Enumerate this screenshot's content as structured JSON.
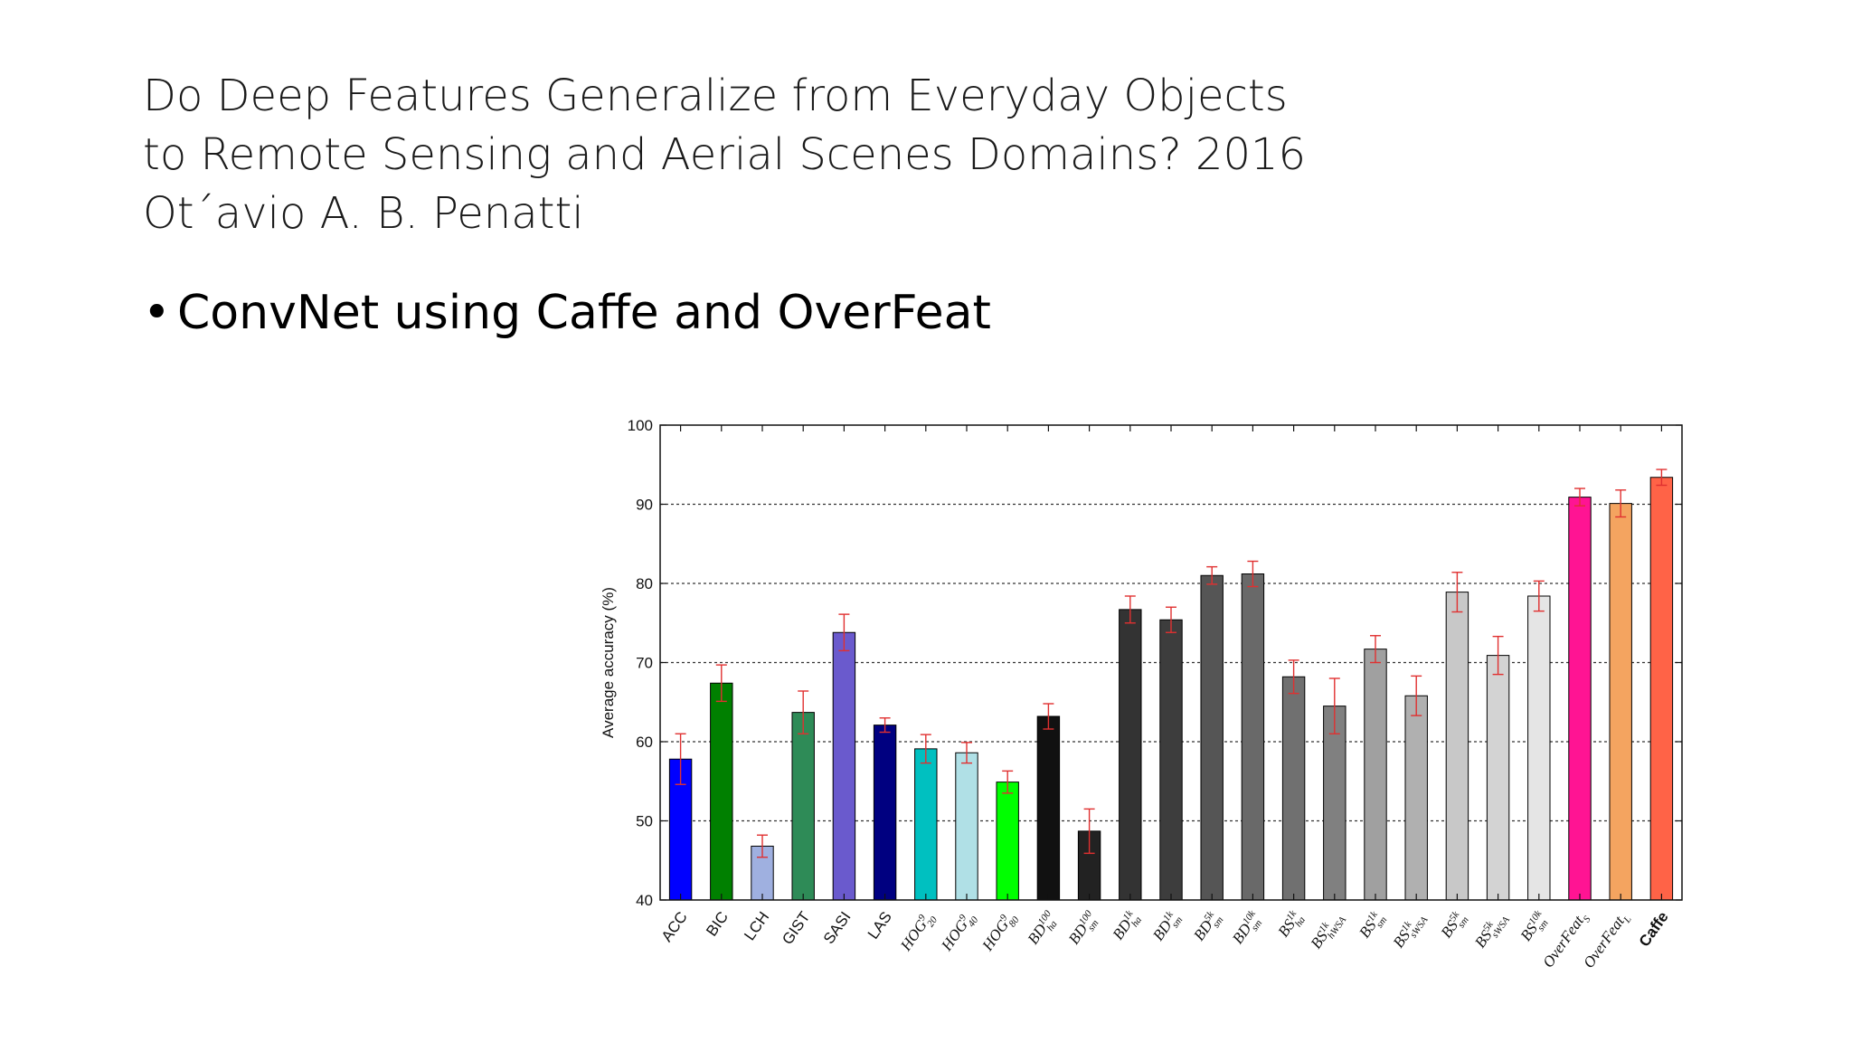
{
  "slide": {
    "title_lines": [
      "Do Deep Features Generalize from Everyday Objects",
      "to Remote Sensing and Aerial Scenes Domains? 2016",
      "Ot´avio A. B. Penatti"
    ],
    "bullet": "ConvNet using Caffe and OverFeat"
  },
  "chart_data": {
    "type": "bar",
    "title": "",
    "xlabel": "",
    "ylabel": "Average accuracy (%)",
    "ylim": [
      40,
      100
    ],
    "yticks": [
      40,
      50,
      60,
      70,
      80,
      90,
      100
    ],
    "grid": "horizontal dashed",
    "error_bar_color": "#e03030",
    "categories": [
      {
        "label": "ACC",
        "base": "ACC"
      },
      {
        "label": "BIC",
        "base": "BIC"
      },
      {
        "label": "LCH",
        "base": "LCH"
      },
      {
        "label": "GIST",
        "base": "GIST"
      },
      {
        "label": "SASI",
        "base": "SASI"
      },
      {
        "label": "LAS",
        "base": "LAS"
      },
      {
        "label": "HOG 9/20",
        "base": "HOG",
        "sup": "9",
        "sub": "20",
        "math": true
      },
      {
        "label": "HOG 9/40",
        "base": "HOG",
        "sup": "9",
        "sub": "40",
        "math": true
      },
      {
        "label": "HOG 9/80",
        "base": "HOG",
        "sup": "9",
        "sub": "80",
        "math": true
      },
      {
        "label": "BD 100/ha",
        "base": "BD",
        "sup": "100",
        "sub": "ha",
        "math": true
      },
      {
        "label": "BD 100/sm",
        "base": "BD",
        "sup": "100",
        "sub": "sm",
        "math": true
      },
      {
        "label": "BD 1k/ha",
        "base": "BD",
        "sup": "1k",
        "sub": "ha",
        "math": true
      },
      {
        "label": "BD 1k/sm",
        "base": "BD",
        "sup": "1k",
        "sub": "sm",
        "math": true
      },
      {
        "label": "BD 5k/sm",
        "base": "BD",
        "sup": "5k",
        "sub": "sm",
        "math": true
      },
      {
        "label": "BD 10k/sm",
        "base": "BD",
        "sup": "10k",
        "sub": "sm",
        "math": true
      },
      {
        "label": "BS 1k/ha",
        "base": "BS",
        "sup": "1k",
        "sub": "ha",
        "math": true
      },
      {
        "label": "BS 1k/hWSA",
        "base": "BS",
        "sup": "1k",
        "sub": "hWSA",
        "math": true
      },
      {
        "label": "BS 1k/sm",
        "base": "BS",
        "sup": "1k",
        "sub": "sm",
        "math": true
      },
      {
        "label": "BS 1k/sWSA",
        "base": "BS",
        "sup": "1k",
        "sub": "sWSA",
        "math": true
      },
      {
        "label": "BS 5k/sm",
        "base": "BS",
        "sup": "5k",
        "sub": "sm",
        "math": true
      },
      {
        "label": "BS 5k/sWSA",
        "base": "BS",
        "sup": "5k",
        "sub": "sWSA",
        "math": true
      },
      {
        "label": "BS 10k/sm",
        "base": "BS",
        "sup": "10k",
        "sub": "sm",
        "math": true
      },
      {
        "label": "OverFeat S",
        "base": "OverFeat",
        "sub": "S",
        "math": true
      },
      {
        "label": "OverFeat L",
        "base": "OverFeat",
        "sub": "L",
        "math": true
      },
      {
        "label": "Caffe",
        "base": "Caffe",
        "bold": true
      }
    ],
    "values": [
      57.8,
      67.4,
      46.8,
      63.7,
      73.8,
      62.1,
      59.1,
      58.6,
      54.9,
      63.2,
      48.7,
      76.7,
      75.4,
      81.0,
      81.2,
      68.2,
      64.5,
      71.7,
      65.8,
      78.9,
      70.9,
      78.4,
      90.9,
      90.1,
      93.4
    ],
    "errors": [
      3.2,
      2.3,
      1.4,
      2.7,
      2.3,
      0.9,
      1.8,
      1.3,
      1.4,
      1.6,
      2.8,
      1.7,
      1.6,
      1.1,
      1.6,
      2.1,
      3.5,
      1.7,
      2.5,
      2.5,
      2.4,
      1.9,
      1.1,
      1.7,
      1.0
    ],
    "colors": [
      "#0000ff",
      "#008000",
      "#9fb0e0",
      "#2e8b57",
      "#6a5acd",
      "#000080",
      "#00c0c0",
      "#b0e0e6",
      "#00ff00",
      "#111111",
      "#222222",
      "#333333",
      "#3d3d3d",
      "#555555",
      "#696969",
      "#707070",
      "#808080",
      "#a0a0a0",
      "#b0b0b0",
      "#c8c8c8",
      "#d3d3d3",
      "#e5e5e5",
      "#ff1493",
      "#f4a460",
      "#ff6347"
    ]
  }
}
